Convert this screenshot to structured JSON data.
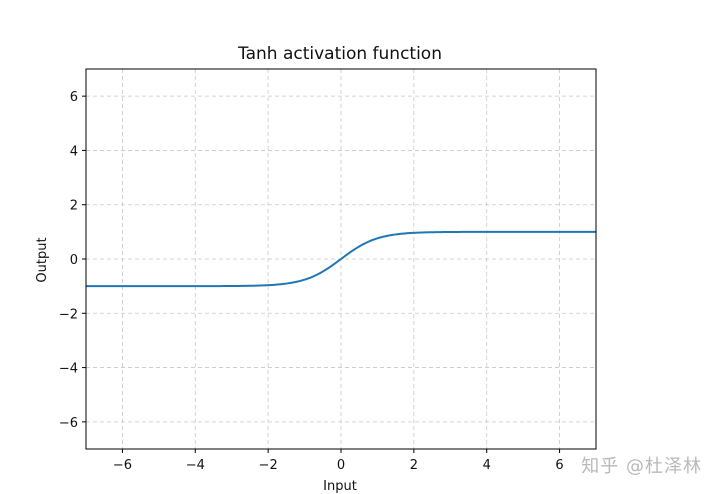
{
  "chart_data": {
    "type": "line",
    "title": "Tanh activation function",
    "xlabel": "Input",
    "ylabel": "Output",
    "xlim": [
      -7,
      7
    ],
    "ylim": [
      -7,
      7
    ],
    "xticks": [
      -6,
      -4,
      -2,
      0,
      2,
      4,
      6
    ],
    "yticks": [
      -6,
      -4,
      -2,
      0,
      2,
      4,
      6
    ],
    "grid": true,
    "line_color": "#1f77b4",
    "series": [
      {
        "function": "tanh",
        "x": [
          -7,
          -6,
          -5,
          -4,
          -3,
          -2,
          -1.5,
          -1,
          -0.5,
          0,
          0.5,
          1,
          1.5,
          2,
          3,
          4,
          5,
          6,
          7
        ],
        "y": [
          -1.0,
          -1.0,
          -1.0,
          -0.999,
          -0.995,
          -0.964,
          -0.905,
          -0.762,
          -0.462,
          0,
          0.462,
          0.762,
          0.905,
          0.964,
          0.995,
          0.999,
          1.0,
          1.0,
          1.0
        ]
      }
    ]
  },
  "watermark": "知乎 @杜泽林"
}
